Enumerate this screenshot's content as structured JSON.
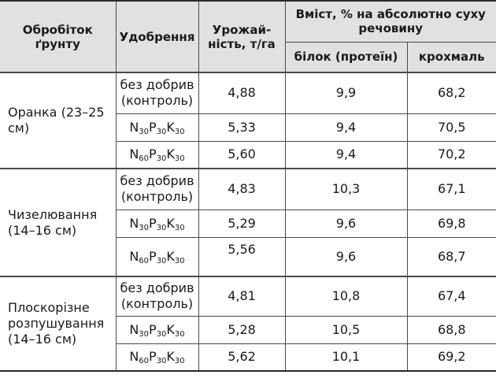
{
  "header": {
    "col1": "Обробіток ґрунту",
    "col2": "Удобрення",
    "col3": "Урожай-ність, т/га",
    "content_group": "Вміст, % на абсолютно суху речовину",
    "protein": "білок (протеїн)",
    "starch": "крохмаль"
  },
  "fert": {
    "none": "без добрив (контроль)",
    "n": "N",
    "p": "P",
    "k": "K",
    "dose30": "30",
    "dose60": "60"
  },
  "groups": [
    {
      "tillage": "Оранка (23–25 см)",
      "rows": [
        {
          "yield": "4,88",
          "protein": "9,9",
          "starch": "68,2"
        },
        {
          "yield": "5,33",
          "protein": "9,4",
          "starch": "70,5"
        },
        {
          "yield": "5,60",
          "protein": "9,4",
          "starch": "70,2"
        }
      ]
    },
    {
      "tillage": "Чизелювання (14–16 см)",
      "rows": [
        {
          "yield": "4,83",
          "protein": "10,3",
          "starch": "67,1"
        },
        {
          "yield": "5,29",
          "protein": "9,6",
          "starch": "69,8"
        },
        {
          "yield": "5,56",
          "protein": "9,6",
          "starch": "68,7"
        }
      ]
    },
    {
      "tillage": "Плоскорізне розпушування (14–16 см)",
      "rows": [
        {
          "yield": "4,81",
          "protein": "10,8",
          "starch": "67,4"
        },
        {
          "yield": "5,28",
          "protein": "10,5",
          "starch": "68,8"
        },
        {
          "yield": "5,62",
          "protein": "10,1",
          "starch": "69,2"
        }
      ]
    }
  ]
}
